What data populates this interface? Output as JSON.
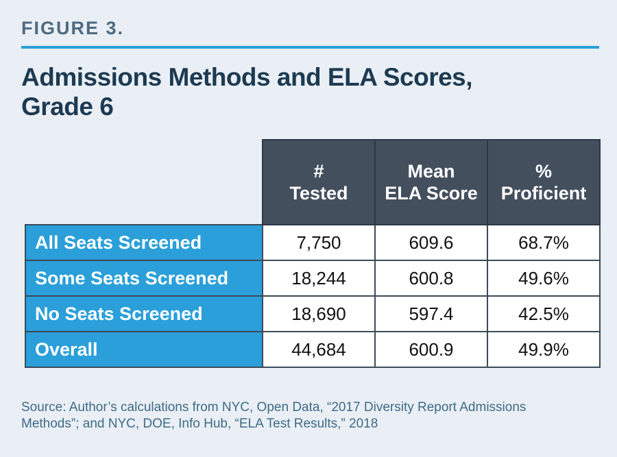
{
  "figure_label": "FIGURE 3.",
  "title_line1": "Admissions Methods and ELA Scores,",
  "title_line2": "Grade 6",
  "table": {
    "headers": [
      {
        "line1": "#",
        "line2": "Tested"
      },
      {
        "line1": "Mean",
        "line2": "ELA Score"
      },
      {
        "line1": "%",
        "line2": "Proficient"
      }
    ],
    "rows": [
      {
        "label": "All Seats Screened",
        "tested": "7,750",
        "mean": "609.6",
        "proficient": "68.7%"
      },
      {
        "label": "Some Seats Screened",
        "tested": "18,244",
        "mean": "600.8",
        "proficient": "49.6%"
      },
      {
        "label": "No Seats Screened",
        "tested": "18,690",
        "mean": "597.4",
        "proficient": "42.5%"
      },
      {
        "label": "Overall",
        "tested": "44,684",
        "mean": "600.9",
        "proficient": "49.9%"
      }
    ]
  },
  "source_line1": "Source: Author’s calculations from NYC, Open Data, “2017 Diversity Report Admissions",
  "source_line2": "Methods”; and NYC, DOE, Info Hub, “ELA Test Results,” 2018"
}
